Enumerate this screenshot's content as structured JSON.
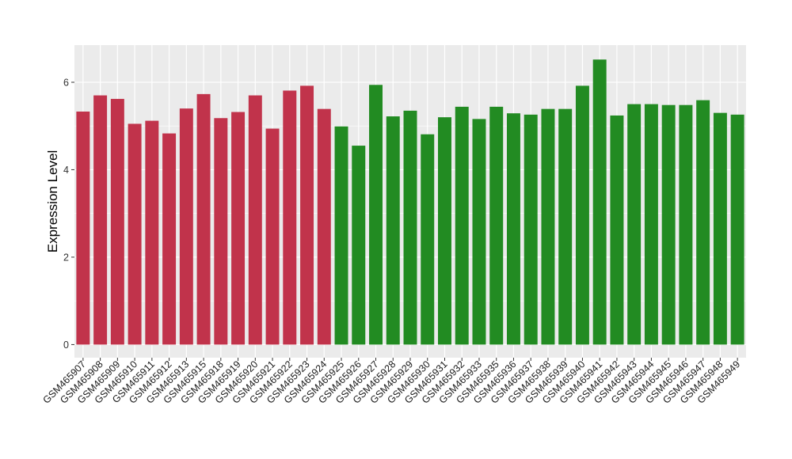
{
  "chart_data": {
    "type": "bar",
    "title": "",
    "xlabel": "",
    "ylabel": "Expression Level",
    "ylim": [
      -0.3,
      6.85
    ],
    "yticks": [
      0,
      2,
      4,
      6
    ],
    "grid": true,
    "legend": "none",
    "colors": {
      "group1": "#c1334b",
      "group2": "#228b22",
      "panel": "#ebebeb",
      "grid": "#ffffff"
    },
    "categories": [
      "GSM465907",
      "GSM465908",
      "GSM465909",
      "GSM465910",
      "GSM465911",
      "GSM465912",
      "GSM465913",
      "GSM465915",
      "GSM465918",
      "GSM465919",
      "GSM465920",
      "GSM465921",
      "GSM465922",
      "GSM465923",
      "GSM465924",
      "GSM465925",
      "GSM465926",
      "GSM465927",
      "GSM465928",
      "GSM465929",
      "GSM465930",
      "GSM465931",
      "GSM465932",
      "GSM465933",
      "GSM465935",
      "GSM465936",
      "GSM465937",
      "GSM465938",
      "GSM465939",
      "GSM465940",
      "GSM465941",
      "GSM465942",
      "GSM465943",
      "GSM465944",
      "GSM465945",
      "GSM465946",
      "GSM465947",
      "GSM465948",
      "GSM465949"
    ],
    "values": [
      5.33,
      5.7,
      5.62,
      5.05,
      5.12,
      4.83,
      5.4,
      5.73,
      5.18,
      5.32,
      5.7,
      4.94,
      5.81,
      5.92,
      5.39,
      4.99,
      4.55,
      5.94,
      5.22,
      5.35,
      4.81,
      5.2,
      5.44,
      5.16,
      5.44,
      5.29,
      5.26,
      5.39,
      5.39,
      5.92,
      6.52,
      5.24,
      5.5,
      5.5,
      5.48,
      5.48,
      5.59,
      5.3,
      5.26
    ],
    "groups": [
      1,
      1,
      1,
      1,
      1,
      1,
      1,
      1,
      1,
      1,
      1,
      1,
      1,
      1,
      1,
      2,
      2,
      2,
      2,
      2,
      2,
      2,
      2,
      2,
      2,
      2,
      2,
      2,
      2,
      2,
      2,
      2,
      2,
      2,
      2,
      2,
      2,
      2,
      2
    ]
  }
}
